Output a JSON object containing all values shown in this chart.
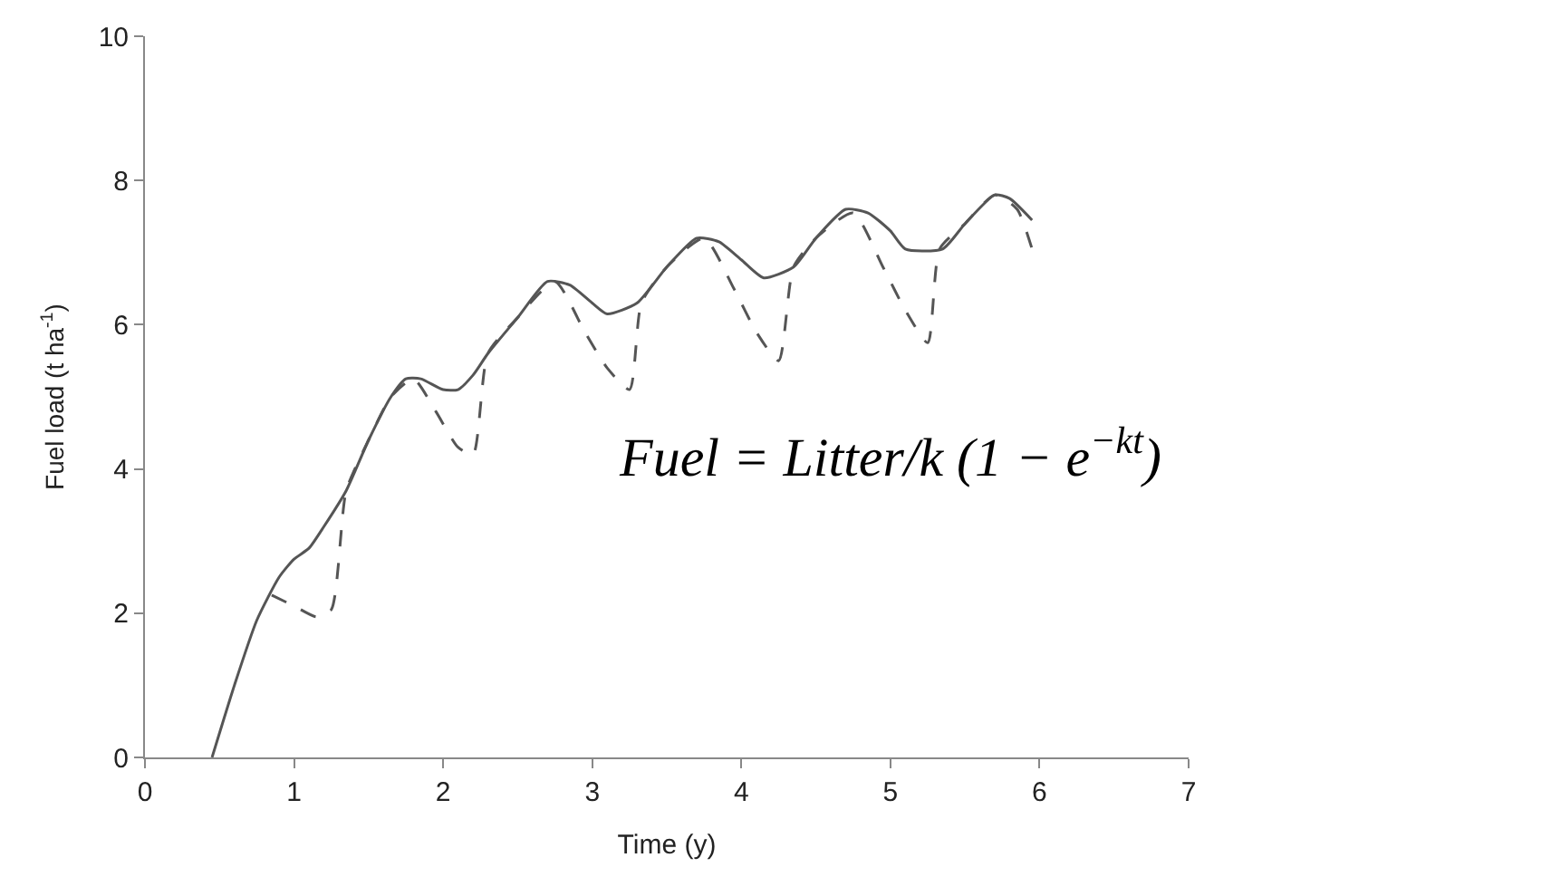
{
  "chart_data": {
    "type": "line",
    "xlabel": "Time (y)",
    "ylabel": "Fuel load (t ha$^{-1}$)",
    "xlim": [
      0,
      7
    ],
    "xticks": [
      0,
      1,
      2,
      3,
      4,
      5,
      6,
      7
    ],
    "ylim": [
      0,
      10
    ],
    "yticks": [
      0,
      2,
      4,
      6,
      8,
      10
    ],
    "marker": "none",
    "annotations": [
      "Fuel = Litter/k (1 − e$^{−kt}$)"
    ],
    "series": [
      {
        "color": "#555555",
        "line_style": "solid",
        "x": [
          0.45,
          0.6,
          0.75,
          0.9,
          1.0,
          1.1,
          1.2,
          1.35,
          1.5,
          1.65,
          1.75,
          1.85,
          2.0,
          2.1,
          2.2,
          2.3,
          2.5,
          2.7,
          2.85,
          3.0,
          3.1,
          3.3,
          3.5,
          3.7,
          3.85,
          4.0,
          4.15,
          4.35,
          4.5,
          4.7,
          4.85,
          5.0,
          5.1,
          5.35,
          5.5,
          5.7,
          5.8,
          5.95
        ],
        "values": [
          0,
          1.0,
          1.9,
          2.5,
          2.75,
          2.9,
          3.2,
          3.7,
          4.4,
          5.0,
          5.25,
          5.25,
          5.1,
          5.1,
          5.3,
          5.6,
          6.1,
          6.6,
          6.55,
          6.3,
          6.15,
          6.3,
          6.8,
          7.2,
          7.15,
          6.9,
          6.65,
          6.8,
          7.2,
          7.6,
          7.55,
          7.3,
          7.05,
          7.05,
          7.4,
          7.8,
          7.75,
          7.45
        ]
      },
      {
        "color": "#555555",
        "line_style": "dashed",
        "x": [
          0.85,
          1.0,
          1.15,
          1.25,
          1.35,
          1.5,
          1.65,
          1.8,
          1.95,
          2.1,
          2.2,
          2.3,
          2.5,
          2.75,
          2.95,
          3.1,
          3.25,
          3.33,
          3.5,
          3.75,
          3.95,
          4.1,
          4.25,
          4.35,
          4.5,
          4.75,
          4.95,
          5.1,
          5.25,
          5.33,
          5.5,
          5.7,
          5.85,
          5.95
        ],
        "values": [
          2.25,
          2.1,
          1.95,
          2.05,
          3.7,
          4.4,
          5.0,
          5.25,
          4.8,
          4.3,
          4.2,
          5.6,
          6.1,
          6.6,
          5.9,
          5.4,
          5.1,
          6.3,
          6.8,
          7.2,
          6.5,
          5.9,
          5.5,
          6.8,
          7.2,
          7.55,
          6.8,
          6.2,
          5.75,
          7.05,
          7.4,
          7.8,
          7.6,
          7.05
        ]
      }
    ]
  }
}
